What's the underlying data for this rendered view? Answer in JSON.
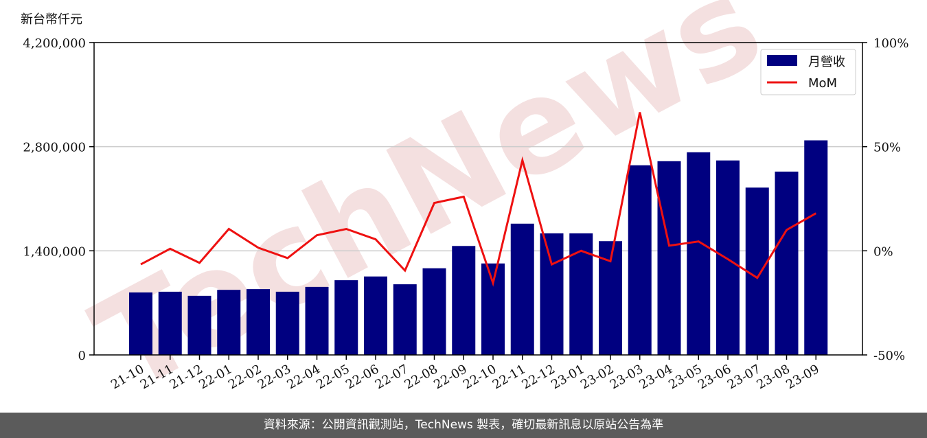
{
  "unit_label": "新台幣仟元",
  "watermark": "TechNews",
  "footer": "資料來源：公開資訊觀測站，TechNews 製表，確切最新訊息以原站公告為準",
  "colors": {
    "bar": "#000080",
    "line": "#ee1111",
    "grid": "#cccccc",
    "watermark": "#f0d6d6"
  },
  "chart_data": {
    "type": "bar",
    "categories": [
      "21-10",
      "21-11",
      "21-12",
      "22-01",
      "22-02",
      "22-03",
      "22-04",
      "22-05",
      "22-06",
      "22-07",
      "22-08",
      "22-09",
      "22-10",
      "22-11",
      "22-12",
      "23-01",
      "23-02",
      "23-03",
      "23-04",
      "23-05",
      "23-06",
      "23-07",
      "23-08",
      "23-09"
    ],
    "series": [
      {
        "name": "月營收",
        "type": "bar",
        "axis": "left",
        "values": [
          840000,
          850000,
          795000,
          875000,
          885000,
          850000,
          915000,
          1005000,
          1055000,
          950000,
          1165000,
          1465000,
          1230000,
          1765000,
          1635000,
          1635000,
          1530000,
          2550000,
          2605000,
          2725000,
          2615000,
          2250000,
          2465000,
          2885000
        ]
      },
      {
        "name": "MoM",
        "type": "line",
        "axis": "right",
        "values": [
          -6.5,
          1,
          -5.8,
          10.5,
          1.5,
          -3.5,
          7.5,
          10.5,
          5.5,
          -9.5,
          23,
          26,
          -15.5,
          43.5,
          -6.5,
          0,
          -5,
          66.5,
          2.5,
          4.5,
          -4,
          -13,
          10,
          18
        ]
      }
    ],
    "y_left": {
      "min": 0,
      "max": 4200000,
      "ticks": [
        "0",
        "1,400,000",
        "2,800,000",
        "4,200,000"
      ]
    },
    "y_right": {
      "min": -50,
      "max": 100,
      "ticks": [
        "-50%",
        "0%",
        "50%",
        "100%"
      ]
    },
    "grid": true,
    "legend": "top-right"
  }
}
